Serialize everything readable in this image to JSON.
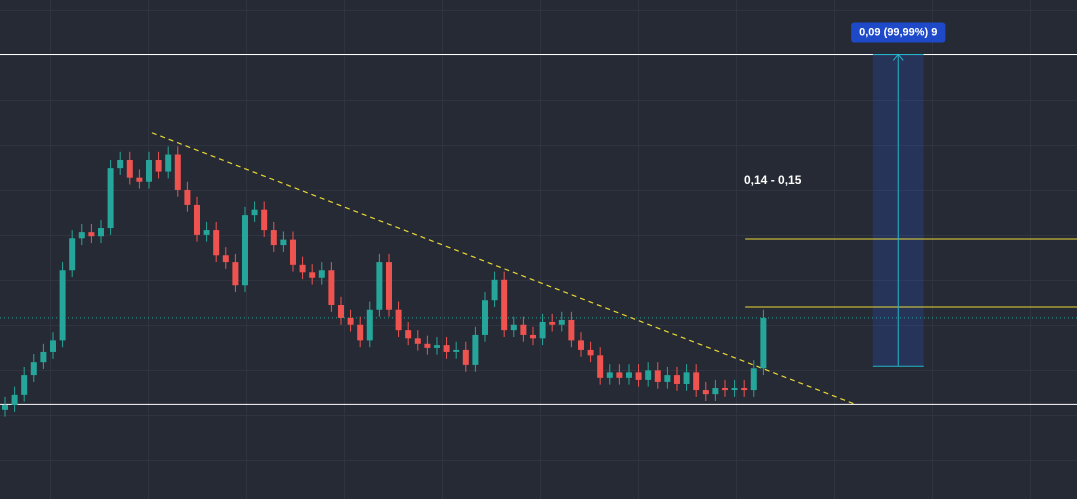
{
  "chart_data": {
    "type": "candlestick",
    "up_color": "#26a69a",
    "down_color": "#ef5350",
    "xlim": [
      -0.52,
      111.67
    ],
    "ylim": [
      0.1118,
      0.1851
    ],
    "open": [
      0.1249,
      0.1256,
      0.1271,
      0.13,
      0.1319,
      0.1334,
      0.1351,
      0.1454,
      0.1501,
      0.151,
      0.1504,
      0.1516,
      0.1604,
      0.1616,
      0.159,
      0.1584,
      0.1616,
      0.1599,
      0.1624,
      0.1572,
      0.155,
      0.1506,
      0.1513,
      0.1476,
      0.1466,
      0.1432,
      0.1535,
      0.1543,
      0.1513,
      0.1491,
      0.1499,
      0.1462,
      0.1451,
      0.1443,
      0.1454,
      0.1403,
      0.1384,
      0.1374,
      0.1351,
      0.1396,
      0.1466,
      0.1396,
      0.1366,
      0.1354,
      0.1346,
      0.134,
      0.1344,
      0.1334,
      0.1337,
      0.1315,
      0.1359,
      0.141,
      0.144,
      0.1366,
      0.1374,
      0.1359,
      0.1354,
      0.1378,
      0.1374,
      0.1381,
      0.1351,
      0.1337,
      0.1329,
      0.1296,
      0.1304,
      0.1296,
      0.1304,
      0.1293,
      0.1307,
      0.129,
      0.13,
      0.1287,
      0.1304,
      0.1278,
      0.1272,
      0.1281,
      0.1278,
      0.1281,
      0.1278,
      0.131
    ],
    "high": [
      0.1268,
      0.1283,
      0.1312,
      0.1331,
      0.1346,
      0.1363,
      0.1466,
      0.1513,
      0.1522,
      0.1522,
      0.1528,
      0.1616,
      0.1628,
      0.1628,
      0.1602,
      0.1628,
      0.1628,
      0.1636,
      0.1636,
      0.1584,
      0.1562,
      0.1525,
      0.1525,
      0.1488,
      0.1478,
      0.1547,
      0.1555,
      0.1555,
      0.1525,
      0.1511,
      0.1511,
      0.1474,
      0.1463,
      0.1466,
      0.1466,
      0.1415,
      0.1396,
      0.1386,
      0.1408,
      0.1478,
      0.1478,
      0.1408,
      0.1378,
      0.1366,
      0.1358,
      0.1356,
      0.1356,
      0.1349,
      0.1349,
      0.1371,
      0.1422,
      0.1452,
      0.1452,
      0.1386,
      0.1386,
      0.1371,
      0.139,
      0.139,
      0.1393,
      0.1393,
      0.1363,
      0.1349,
      0.1341,
      0.1316,
      0.1316,
      0.1316,
      0.1316,
      0.1319,
      0.1319,
      0.1312,
      0.1312,
      0.1316,
      0.1316,
      0.129,
      0.1293,
      0.1293,
      0.1293,
      0.1293,
      0.1322,
      0.1396
    ],
    "low": [
      0.1239,
      0.1246,
      0.1261,
      0.129,
      0.1309,
      0.1324,
      0.1341,
      0.1444,
      0.1491,
      0.1494,
      0.1494,
      0.1506,
      0.1594,
      0.158,
      0.1574,
      0.1574,
      0.1589,
      0.1589,
      0.1562,
      0.154,
      0.1496,
      0.1496,
      0.1466,
      0.1456,
      0.1422,
      0.1422,
      0.1525,
      0.1503,
      0.1481,
      0.1481,
      0.1452,
      0.1441,
      0.1433,
      0.1433,
      0.1393,
      0.1374,
      0.1364,
      0.1341,
      0.1341,
      0.1386,
      0.1386,
      0.1356,
      0.1344,
      0.1336,
      0.133,
      0.133,
      0.1324,
      0.1324,
      0.1305,
      0.1305,
      0.1349,
      0.14,
      0.1356,
      0.1356,
      0.1349,
      0.1344,
      0.1344,
      0.1364,
      0.1364,
      0.1341,
      0.1327,
      0.1319,
      0.1286,
      0.1286,
      0.1286,
      0.1286,
      0.1283,
      0.1283,
      0.128,
      0.128,
      0.1277,
      0.1277,
      0.1268,
      0.1262,
      0.1262,
      0.1268,
      0.1268,
      0.1268,
      0.1268,
      0.13
    ],
    "close": [
      0.1256,
      0.1271,
      0.13,
      0.1319,
      0.1334,
      0.1351,
      0.1454,
      0.1501,
      0.151,
      0.1504,
      0.1516,
      0.1604,
      0.1616,
      0.159,
      0.1584,
      0.1616,
      0.1599,
      0.1624,
      0.1572,
      0.155,
      0.1506,
      0.1513,
      0.1476,
      0.1466,
      0.1432,
      0.1535,
      0.1543,
      0.1513,
      0.1491,
      0.1499,
      0.1462,
      0.1451,
      0.1443,
      0.1454,
      0.1403,
      0.1384,
      0.1374,
      0.1351,
      0.1396,
      0.1466,
      0.1396,
      0.1366,
      0.1354,
      0.1346,
      0.134,
      0.1344,
      0.1334,
      0.1337,
      0.1315,
      0.1359,
      0.141,
      0.144,
      0.1366,
      0.1374,
      0.1359,
      0.1354,
      0.1378,
      0.1374,
      0.1381,
      0.1351,
      0.1337,
      0.1329,
      0.1296,
      0.1304,
      0.1296,
      0.1304,
      0.1293,
      0.1307,
      0.129,
      0.13,
      0.1287,
      0.1304,
      0.1278,
      0.1272,
      0.1281,
      0.1278,
      0.1281,
      0.1278,
      0.131,
      0.1384
    ],
    "levels": [
      {
        "value": 0.1771,
        "color": "#ffffff"
      },
      {
        "value": 0.1257,
        "color": "#ffffff"
      },
      {
        "value": 0.15,
        "color": "#e8d735",
        "x_start": 77.1
      },
      {
        "value": 0.14,
        "color": "#e8d735",
        "x_start": 77.1
      }
    ],
    "trendline": {
      "x": [
        15.3,
        88.6
      ],
      "y": [
        0.1656,
        0.1257
      ],
      "color": "#e8d735"
    },
    "measure": {
      "x": [
        90.4,
        95.7
      ],
      "y": [
        0.1313,
        0.1771
      ],
      "color": "#22b5c9",
      "label": "0,09 (99,99%) 9"
    },
    "annotation": "0,14 - 0,15"
  }
}
